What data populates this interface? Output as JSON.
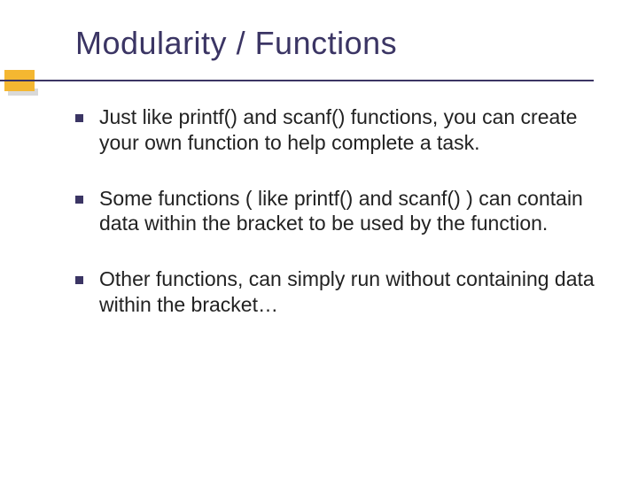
{
  "slide": {
    "title": "Modularity / Functions",
    "title_color": "#3b3564",
    "title_fontsize": 36,
    "underline_color": "#3b3564",
    "accent_color": "#f4b731",
    "shadow_color": "#d9d9d9",
    "background_color": "#ffffff",
    "bullets": [
      {
        "text": "Just like printf() and scanf() functions, you can create your own function to help complete a task.",
        "marker_color": "#3b3564"
      },
      {
        "text": "Some functions ( like printf() and scanf() ) can contain data within the bracket to be used by the function.",
        "marker_color": "#3b3564"
      },
      {
        "text": "Other functions, can simply run without containing data within the bracket…",
        "marker_color": "#3b3564"
      }
    ],
    "body_fontsize": 23,
    "body_color": "#222222"
  }
}
